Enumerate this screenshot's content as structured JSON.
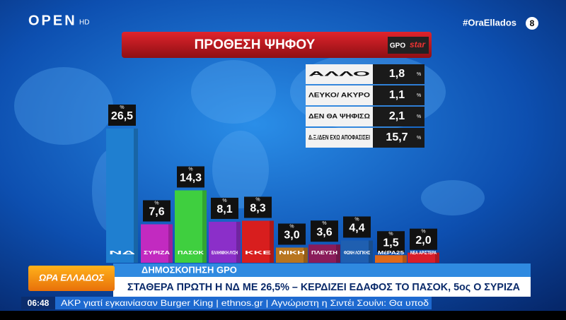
{
  "channel": {
    "logo": "OPEN",
    "quality": "HD",
    "hashtag": "#OraEllados",
    "rating": "8"
  },
  "chart_data": {
    "type": "bar",
    "title": "ΠΡΟΘΕΣΗ ΨΗΦΟΥ",
    "source": "GPO",
    "client": "star",
    "categories": [
      "ΝΔ",
      "ΣΥΡΙΖΑ",
      "ΠΑΣΟΚ",
      "ΕΛΛΗΝΙΚΗ ΛΥΣΗ",
      "ΚΚΕ",
      "ΝΙΚΗ",
      "ΠΛΕΥΣΗ",
      "ΦΩΝΗ ΛΟΓΙΚΗΣ",
      "ΜέΡΑ25",
      "ΝΕΑ ΑΡΙΣΤΕΡΑ"
    ],
    "values": [
      26.5,
      7.6,
      14.3,
      8.1,
      8.3,
      3.0,
      3.6,
      4.4,
      1.5,
      2.0
    ],
    "value_labels": [
      "26,5",
      "7,6",
      "14,3",
      "8,1",
      "8,3",
      "3,0",
      "3,6",
      "4,4",
      "1,5",
      "2,0"
    ],
    "value_unit": "%",
    "colors": [
      "#1f7fd0",
      "#c22ac0",
      "#3fcf3f",
      "#8b2fc9",
      "#d81e1e",
      "#b8751f",
      "#8a1c5a",
      "#1f5fb0",
      "#e06a1a",
      "#d81e2a"
    ]
  },
  "side_table": {
    "rows": [
      [
        "ΑΛΛΟ",
        "1,8"
      ],
      [
        "ΛΕΥΚΟ/ ΑΚΥΡΟ",
        "1,1"
      ],
      [
        "ΔΕΝ ΘΑ ΨΗΦΙΣΩ",
        "2,1"
      ],
      [
        "Δ.Ξ./ΔΕΝ ΕΧΩ ΑΠΟΦΑΣΙΣΕΙ",
        "15,7"
      ]
    ],
    "unit": "%"
  },
  "lower_third": {
    "show": "ΩΡΑ ΕΛΛΑΔΟΣ",
    "kicker": "ΔΗΜΟΣΚΟΠΗΣΗ GPO",
    "headline": "ΣΤΑΘΕΡΑ ΠΡΩΤΗ Η ΝΔ ΜΕ 26,5% – ΚΕΡΔΙΖΕΙ ΕΔΑΦΟΣ ΤΟ ΠΑΣΟΚ, 5ος Ο ΣΥΡΙΖΑ"
  },
  "ticker": {
    "time": "06:48",
    "items": [
      "ΑΚΡ γιατί εγκαινίασαν Burger King",
      "ethnos.gr",
      "Αγνώριστη η Σιντέι Σουίνι: Θα υποδ"
    ]
  }
}
